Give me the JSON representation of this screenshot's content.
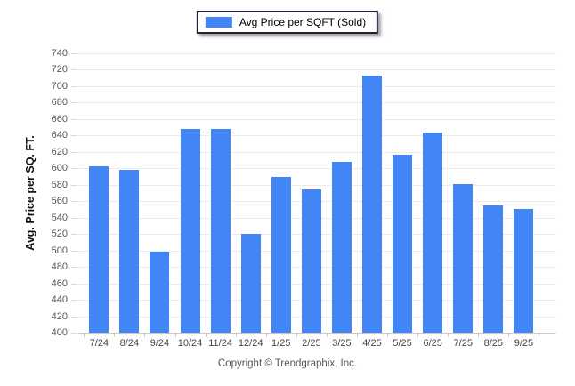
{
  "legend": {
    "label": "Avg Price per SQFT (Sold)"
  },
  "y_axis": {
    "title": "Avg. Price per SQ. FT.",
    "min": 400,
    "max": 740,
    "step": 20
  },
  "footer": {
    "copyright": "Copyright © Trendgraphix, Inc."
  },
  "colors": {
    "bar": "#4285f4",
    "gridline": "#ececec",
    "axis_line": "#c9c9c9",
    "tick_label": "#555555",
    "legend_border": "#1b2437"
  },
  "chart_data": {
    "type": "bar",
    "title": "Avg Price per SQFT (Sold)",
    "xlabel": "",
    "ylabel": "Avg. Price per SQ. FT.",
    "categories": [
      "7/24",
      "8/24",
      "9/24",
      "10/24",
      "11/24",
      "12/24",
      "1/25",
      "2/25",
      "3/25",
      "4/25",
      "5/25",
      "6/25",
      "7/25",
      "8/25",
      "9/25"
    ],
    "values": [
      603,
      598,
      499,
      648,
      648,
      520,
      589,
      574,
      608,
      713,
      617,
      644,
      581,
      555,
      550
    ],
    "ylim": [
      400,
      740
    ],
    "ytick_step": 20,
    "grid": "horizontal",
    "legend_position": "top-center",
    "footer": "Copyright © Trendgraphix, Inc."
  }
}
